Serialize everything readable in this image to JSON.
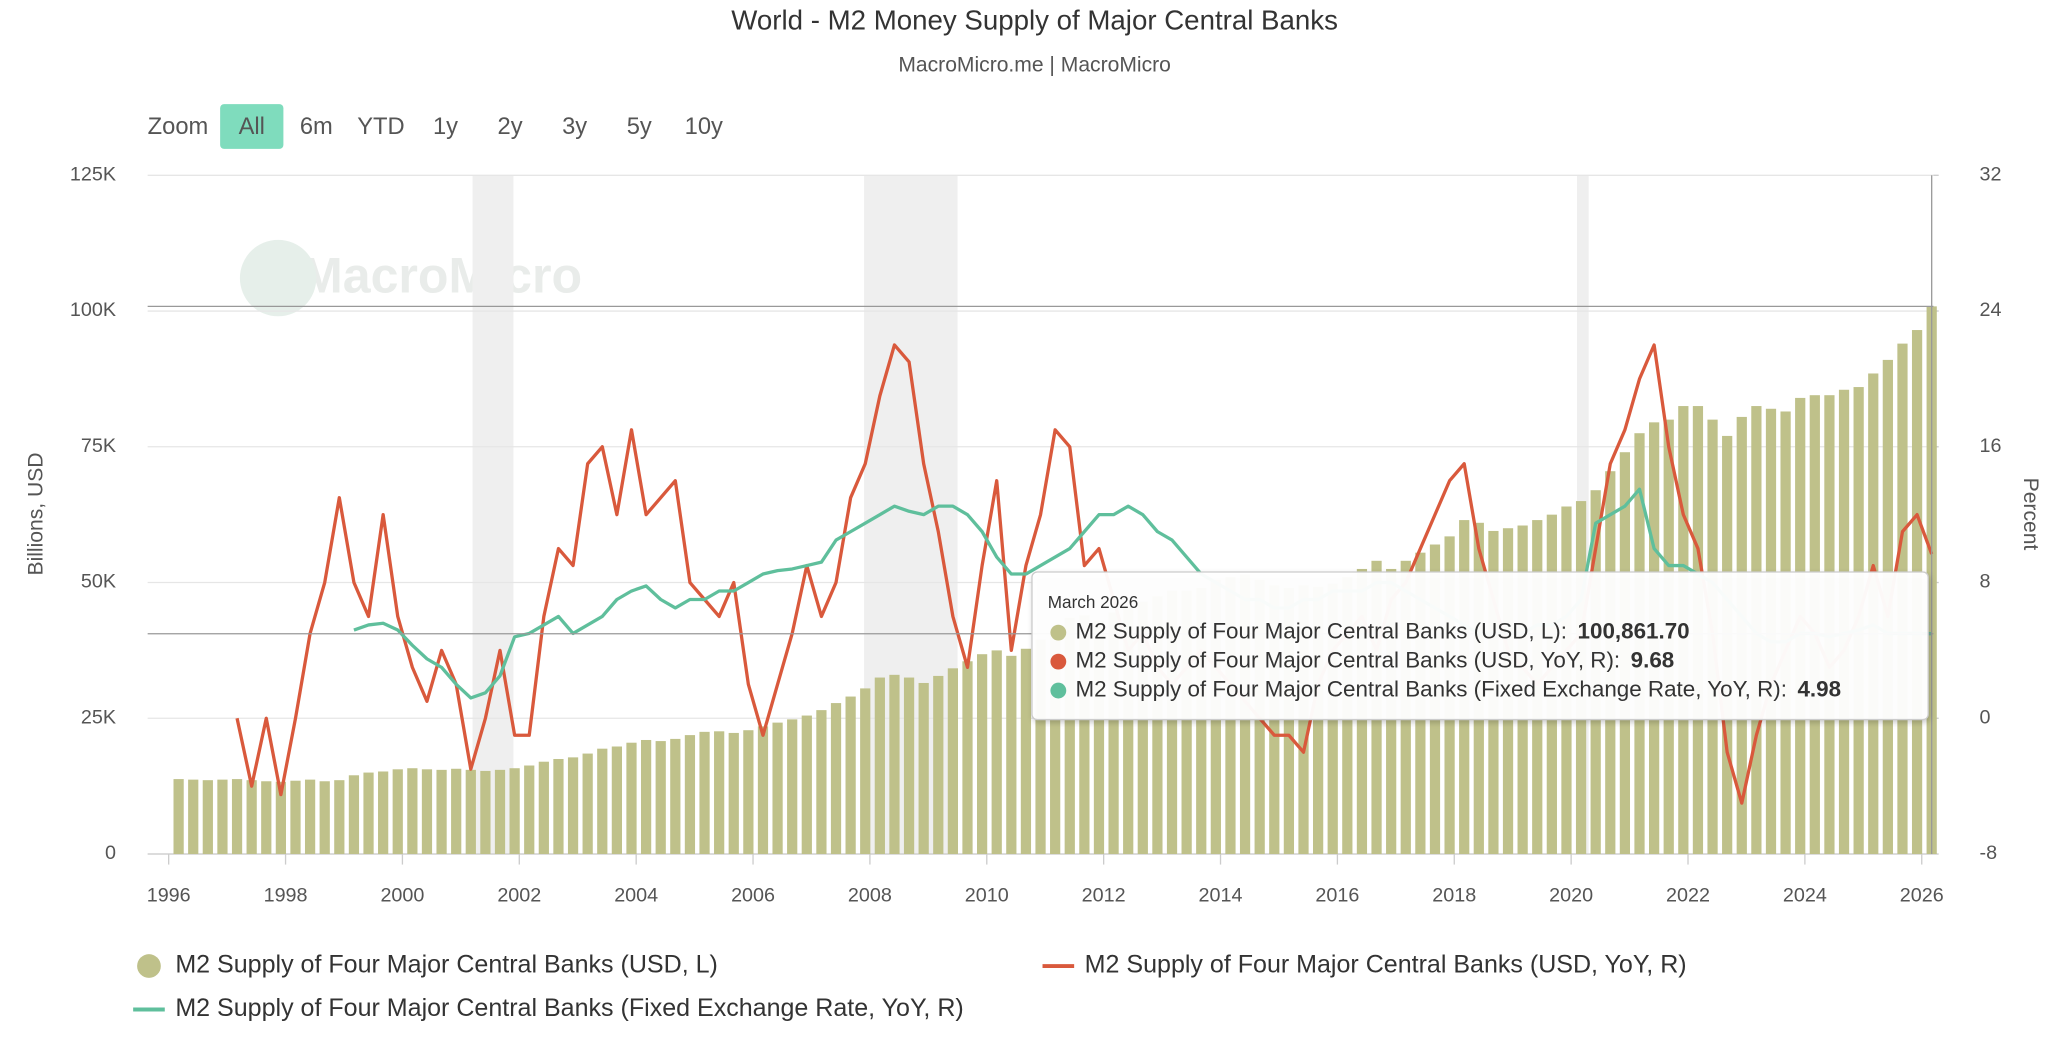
{
  "chart_data": {
    "type": "combo",
    "title": "World - M2 Money Supply of Major Central Banks",
    "subtitle": "MacroMicro.me | MacroMicro",
    "watermark": "MacroMicro",
    "zoom": {
      "label": "Zoom",
      "buttons": [
        "All",
        "6m",
        "YTD",
        "1y",
        "2y",
        "3y",
        "5y",
        "10y"
      ],
      "selected": 0
    },
    "y_label": "Billions, USD",
    "y2_label": "Percent",
    "xlim": [
      1995.64,
      2026.2
    ],
    "xticks": [
      1996,
      1998,
      2000,
      2002,
      2004,
      2006,
      2008,
      2010,
      2012,
      2014,
      2016,
      2018,
      2020,
      2022,
      2024,
      2026
    ],
    "ylim": [
      0,
      125000
    ],
    "yticks": [
      0,
      {
        "value": 25000,
        "label": "25K"
      },
      {
        "value": 50000,
        "label": "50K"
      },
      {
        "value": 75000,
        "label": "75K"
      },
      {
        "value": 100000,
        "label": "100K"
      },
      {
        "value": 125000,
        "label": "125K"
      }
    ],
    "y2lim": [
      -8,
      32
    ],
    "y2ticks": [
      -8,
      0,
      8,
      16,
      24,
      32
    ],
    "grid": true,
    "shaded_periods": [
      [
        2001.2,
        2001.9
      ],
      [
        2007.9,
        2009.5
      ],
      [
        2020.1,
        2020.3
      ]
    ],
    "x": [
      1996.17,
      1996.42,
      1996.67,
      1996.92,
      1997.17,
      1997.42,
      1997.67,
      1997.92,
      1998.17,
      1998.42,
      1998.67,
      1998.92,
      1999.17,
      1999.42,
      1999.67,
      1999.92,
      2000.17,
      2000.42,
      2000.67,
      2000.92,
      2001.17,
      2001.42,
      2001.67,
      2001.92,
      2002.17,
      2002.42,
      2002.67,
      2002.92,
      2003.17,
      2003.42,
      2003.67,
      2003.92,
      2004.17,
      2004.42,
      2004.67,
      2004.92,
      2005.17,
      2005.42,
      2005.67,
      2005.92,
      2006.17,
      2006.42,
      2006.67,
      2006.92,
      2007.17,
      2007.42,
      2007.67,
      2007.92,
      2008.17,
      2008.42,
      2008.67,
      2008.92,
      2009.17,
      2009.42,
      2009.67,
      2009.92,
      2010.17,
      2010.42,
      2010.67,
      2010.92,
      2011.17,
      2011.42,
      2011.67,
      2011.92,
      2012.17,
      2012.42,
      2012.67,
      2012.92,
      2013.17,
      2013.42,
      2013.67,
      2013.92,
      2014.17,
      2014.42,
      2014.67,
      2014.92,
      2015.17,
      2015.42,
      2015.67,
      2015.92,
      2016.17,
      2016.42,
      2016.67,
      2016.92,
      2017.17,
      2017.42,
      2017.67,
      2017.92,
      2018.17,
      2018.42,
      2018.67,
      2018.92,
      2019.17,
      2019.42,
      2019.67,
      2019.92,
      2020.17,
      2020.42,
      2020.67,
      2020.92,
      2021.17,
      2021.42,
      2021.67,
      2021.92,
      2022.17,
      2022.42,
      2022.67,
      2022.92,
      2023.17,
      2023.42,
      2023.67,
      2023.92,
      2024.17,
      2024.42,
      2024.67,
      2024.92,
      2025.17,
      2025.42,
      2025.67,
      2025.92,
      2026.17
    ],
    "series": [
      {
        "name": "M2 Supply of Four Major Central Banks (USD, L)",
        "type": "bar",
        "color": "#bfc18a",
        "values": [
          13800,
          13700,
          13600,
          13700,
          13800,
          13600,
          13400,
          13300,
          13500,
          13700,
          13400,
          13600,
          14500,
          15000,
          15200,
          15600,
          15800,
          15600,
          15500,
          15700,
          15500,
          15300,
          15500,
          15800,
          16300,
          17000,
          17500,
          17800,
          18500,
          19400,
          19800,
          20500,
          21000,
          20800,
          21200,
          21900,
          22500,
          22600,
          22300,
          22800,
          23500,
          24200,
          24800,
          25500,
          26500,
          27800,
          29000,
          30500,
          32500,
          33000,
          32500,
          31500,
          32800,
          34200,
          35500,
          36800,
          37500,
          36500,
          37800,
          39500,
          41500,
          43500,
          44000,
          43000,
          44500,
          45500,
          46500,
          47500,
          48500,
          48500,
          49000,
          50500,
          51000,
          51500,
          50500,
          49500,
          49000,
          49500,
          49200,
          49800,
          51000,
          52500,
          54000,
          52500,
          54000,
          55500,
          57000,
          58500,
          61500,
          61000,
          59500,
          60000,
          60500,
          61500,
          62500,
          64000,
          65000,
          67000,
          70500,
          74000,
          77500,
          79500,
          80000,
          82500,
          82500,
          80000,
          77000,
          80500,
          82500,
          82000,
          81500,
          84000,
          84500,
          84500,
          85500,
          86000,
          88500,
          91000,
          94000,
          96500,
          100861.7
        ]
      },
      {
        "name": "M2 Supply of Four Major Central Banks (USD, YoY, R)",
        "type": "line",
        "axis": "y2",
        "color": "#d9593c",
        "values": [
          null,
          null,
          null,
          null,
          0,
          -4,
          0,
          -4.5,
          0,
          5,
          8,
          13,
          8,
          6,
          12,
          6,
          3,
          1,
          4,
          2,
          -3,
          0,
          4,
          -1,
          -1,
          6,
          10,
          9,
          15,
          16,
          12,
          17,
          12,
          13,
          14,
          8,
          7,
          6,
          8,
          2,
          -1,
          2,
          5,
          9,
          6,
          8,
          13,
          15,
          19,
          22,
          21,
          15,
          11,
          6,
          3,
          9,
          14,
          4,
          9,
          12,
          17,
          16,
          9,
          10,
          7,
          4,
          5,
          3,
          2,
          3,
          4,
          3,
          2,
          1,
          0,
          -1,
          -1,
          -2,
          2,
          4,
          5,
          6,
          4,
          7,
          8,
          10,
          12,
          14,
          15,
          10,
          7,
          4,
          3,
          2,
          3,
          4,
          5,
          10,
          15,
          17,
          20,
          22,
          16,
          12,
          10,
          5,
          -2,
          -5,
          -1,
          2,
          4,
          6,
          5,
          3,
          4,
          6,
          9,
          6,
          11,
          12,
          9.68
        ]
      },
      {
        "name": "M2 Supply of Four Major Central Banks (Fixed Exchange Rate, YoY, R)",
        "type": "line",
        "axis": "y2",
        "color": "#5fbf9c",
        "values": [
          null,
          null,
          null,
          null,
          null,
          null,
          null,
          null,
          null,
          null,
          null,
          null,
          5.2,
          5.5,
          5.6,
          5.2,
          4.3,
          3.5,
          3.0,
          2.0,
          1.2,
          1.5,
          2.5,
          4.8,
          5.0,
          5.5,
          6.0,
          5.0,
          5.5,
          6.0,
          7.0,
          7.5,
          7.8,
          7.0,
          6.5,
          7.0,
          7.0,
          7.5,
          7.5,
          8.0,
          8.5,
          8.7,
          8.8,
          9.0,
          9.2,
          10.5,
          11.0,
          11.5,
          12.0,
          12.5,
          12.2,
          12.0,
          12.5,
          12.5,
          12.0,
          11.0,
          9.5,
          8.5,
          8.5,
          9.0,
          9.5,
          10.0,
          11.0,
          12.0,
          12.0,
          12.5,
          12.0,
          11.0,
          10.5,
          9.5,
          8.5,
          8.0,
          7.5,
          7.0,
          7.0,
          6.5,
          6.5,
          7.0,
          7.0,
          7.5,
          7.5,
          7.5,
          8.0,
          8.0,
          7.5,
          7.0,
          6.5,
          6.0,
          5.5,
          5.0,
          5.0,
          5.0,
          5.0,
          5.5,
          5.5,
          6.0,
          7.0,
          11.5,
          12.0,
          12.5,
          13.5,
          10.0,
          9.0,
          9.0,
          8.5,
          8.0,
          7.0,
          6.0,
          5.0,
          4.5,
          4.5,
          5.0,
          5.0,
          4.8,
          5.0,
          5.2,
          5.5,
          5.0,
          5.0,
          5.0,
          4.98
        ]
      }
    ],
    "tooltip": {
      "title": "March 2026",
      "rows": [
        {
          "name": "M2 Supply of Four Major Central Banks (USD, L):",
          "value": 100861.7,
          "label": "100,861.70"
        },
        {
          "name": "M2 Supply of Four Major Central Banks (USD, YoY, R):",
          "value": 9.68,
          "label": "9.68"
        },
        {
          "name": "M2 Supply of Four Major Central Banks (Fixed Exchange Rate, YoY, R):",
          "value": 4.98,
          "label": "4.98"
        }
      ]
    }
  }
}
